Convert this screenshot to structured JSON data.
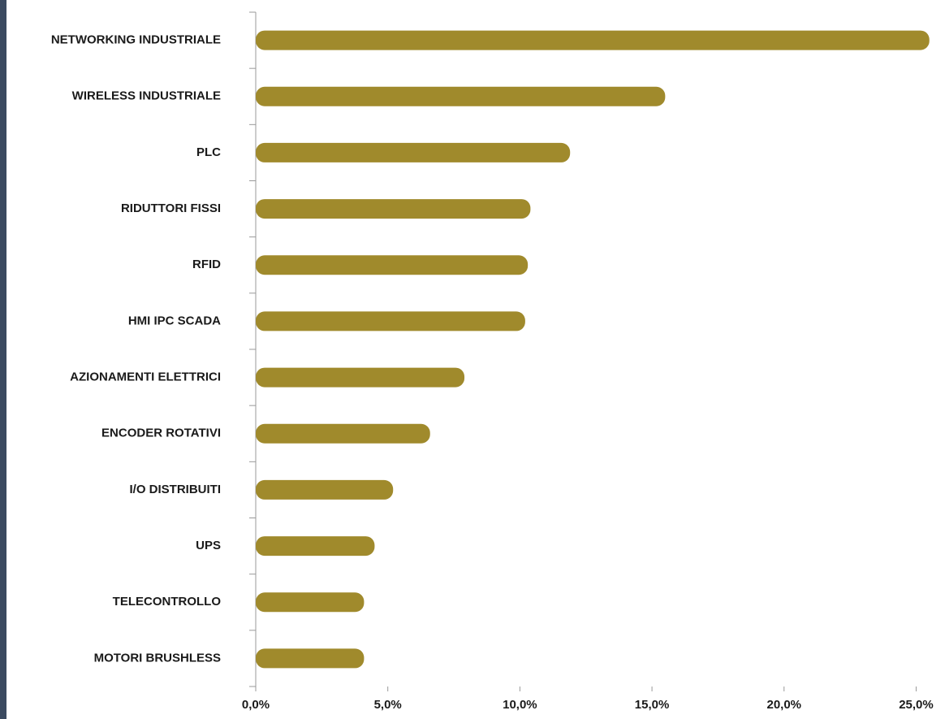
{
  "chart_data": {
    "type": "bar",
    "orientation": "horizontal",
    "categories": [
      "NETWORKING INDUSTRIALE",
      "WIRELESS INDUSTRIALE",
      "PLC",
      "RIDUTTORI FISSI",
      "RFID",
      "HMI IPC SCADA",
      "AZIONAMENTI ELETTRICI",
      "ENCODER ROTATIVI",
      "I/O DISTRIBUITI",
      "UPS",
      "TELECONTROLLO",
      "MOTORI BRUSHLESS"
    ],
    "values": [
      25.5,
      15.5,
      11.9,
      10.4,
      10.3,
      10.2,
      7.9,
      6.6,
      5.2,
      4.5,
      4.1,
      4.1
    ],
    "color": "#a08a2c",
    "xlim": [
      0,
      26
    ],
    "xticks": [
      {
        "value": 0,
        "label": "0,0%"
      },
      {
        "value": 5,
        "label": "5,0%"
      },
      {
        "value": 10,
        "label": "10,0%"
      },
      {
        "value": 15,
        "label": "15,0%"
      },
      {
        "value": 20,
        "label": "20,0%"
      },
      {
        "value": 25,
        "label": "25,0%"
      }
    ],
    "grid": false
  }
}
